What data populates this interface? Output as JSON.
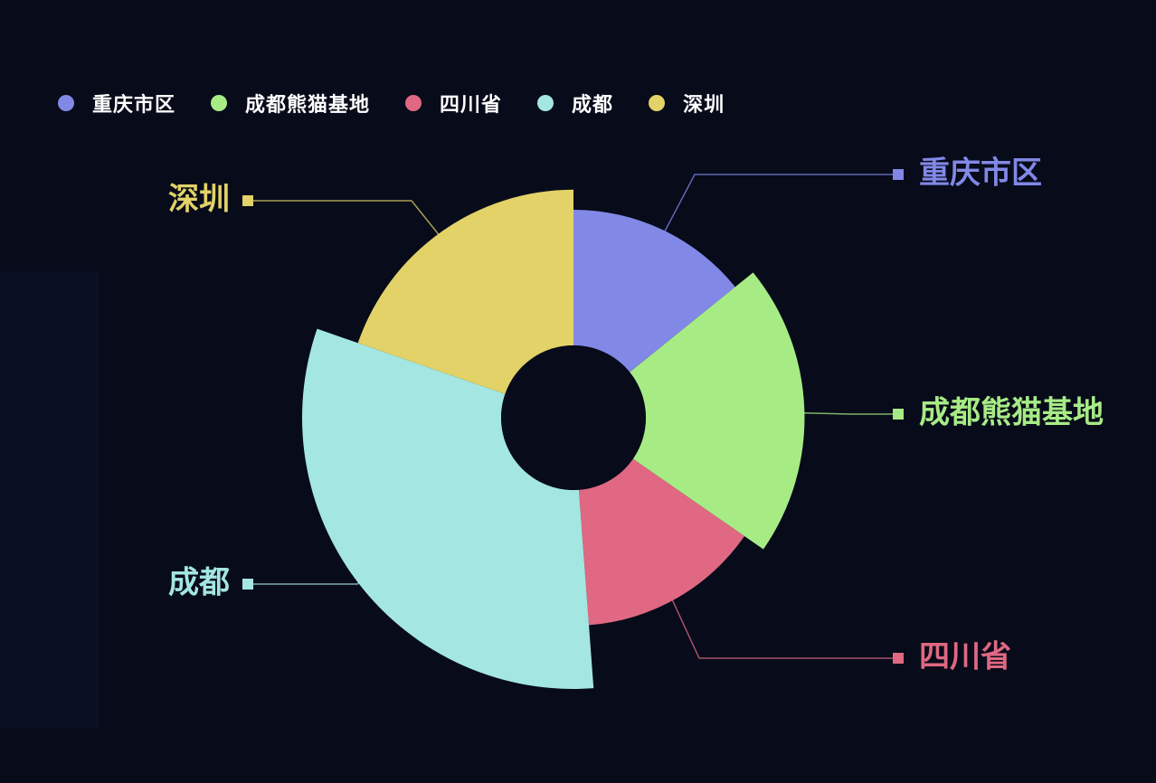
{
  "chart_data": {
    "type": "pie",
    "variant": "rose",
    "legend_position": "top-left",
    "categories": [
      "重庆市区",
      "成都熊猫基地",
      "四川省",
      "成都",
      "深圳"
    ],
    "values": [
      18,
      26,
      18,
      40,
      25
    ],
    "colors": [
      "#8188e6",
      "#a7eb85",
      "#e06882",
      "#a4e6e1",
      "#e2d268"
    ],
    "background": "#070b1a"
  }
}
